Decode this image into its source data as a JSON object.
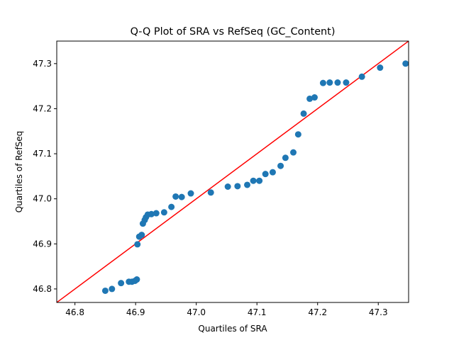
{
  "chart_data": {
    "type": "scatter",
    "title": "Q-Q Plot of SRA vs RefSeq (GC_Content)",
    "xlabel": "Quartiles of SRA",
    "ylabel": "Quartiles of RefSeq",
    "xlim": [
      46.77,
      47.35
    ],
    "ylim": [
      46.77,
      47.35
    ],
    "xticks": [
      46.8,
      46.9,
      47.0,
      47.1,
      47.2,
      47.3
    ],
    "xtick_labels": [
      "46.8",
      "46.9",
      "47.0",
      "47.1",
      "47.2",
      "47.3"
    ],
    "yticks": [
      46.8,
      46.9,
      47.0,
      47.1,
      47.2,
      47.3
    ],
    "ytick_labels": [
      "46.8",
      "46.9",
      "47.0",
      "47.1",
      "47.2",
      "47.3"
    ],
    "grid": false,
    "legend": "none",
    "reference_line": {
      "type": "y=x",
      "color": "#ff0000"
    },
    "point_color": "#1f77b4",
    "points": [
      [
        46.85,
        46.796
      ],
      [
        46.861,
        46.8
      ],
      [
        46.876,
        46.813
      ],
      [
        46.889,
        46.816
      ],
      [
        46.894,
        46.816
      ],
      [
        46.899,
        46.818
      ],
      [
        46.902,
        46.821
      ],
      [
        46.903,
        46.899
      ],
      [
        46.906,
        46.916
      ],
      [
        46.91,
        46.92
      ],
      [
        46.912,
        46.945
      ],
      [
        46.915,
        46.953
      ],
      [
        46.917,
        46.959
      ],
      [
        46.92,
        46.965
      ],
      [
        46.926,
        46.966
      ],
      [
        46.934,
        46.968
      ],
      [
        46.947,
        46.97
      ],
      [
        46.959,
        46.982
      ],
      [
        46.966,
        47.005
      ],
      [
        46.976,
        47.004
      ],
      [
        46.991,
        47.012
      ],
      [
        47.024,
        47.014
      ],
      [
        47.052,
        47.027
      ],
      [
        47.068,
        47.028
      ],
      [
        47.084,
        47.031
      ],
      [
        47.094,
        47.04
      ],
      [
        47.104,
        47.04
      ],
      [
        47.114,
        47.055
      ],
      [
        47.126,
        47.059
      ],
      [
        47.139,
        47.073
      ],
      [
        47.147,
        47.091
      ],
      [
        47.16,
        47.103
      ],
      [
        47.168,
        47.143
      ],
      [
        47.177,
        47.189
      ],
      [
        47.187,
        47.222
      ],
      [
        47.195,
        47.225
      ],
      [
        47.209,
        47.257
      ],
      [
        47.22,
        47.258
      ],
      [
        47.233,
        47.258
      ],
      [
        47.247,
        47.258
      ],
      [
        47.273,
        47.271
      ],
      [
        47.303,
        47.291
      ],
      [
        47.345,
        47.3
      ]
    ]
  }
}
